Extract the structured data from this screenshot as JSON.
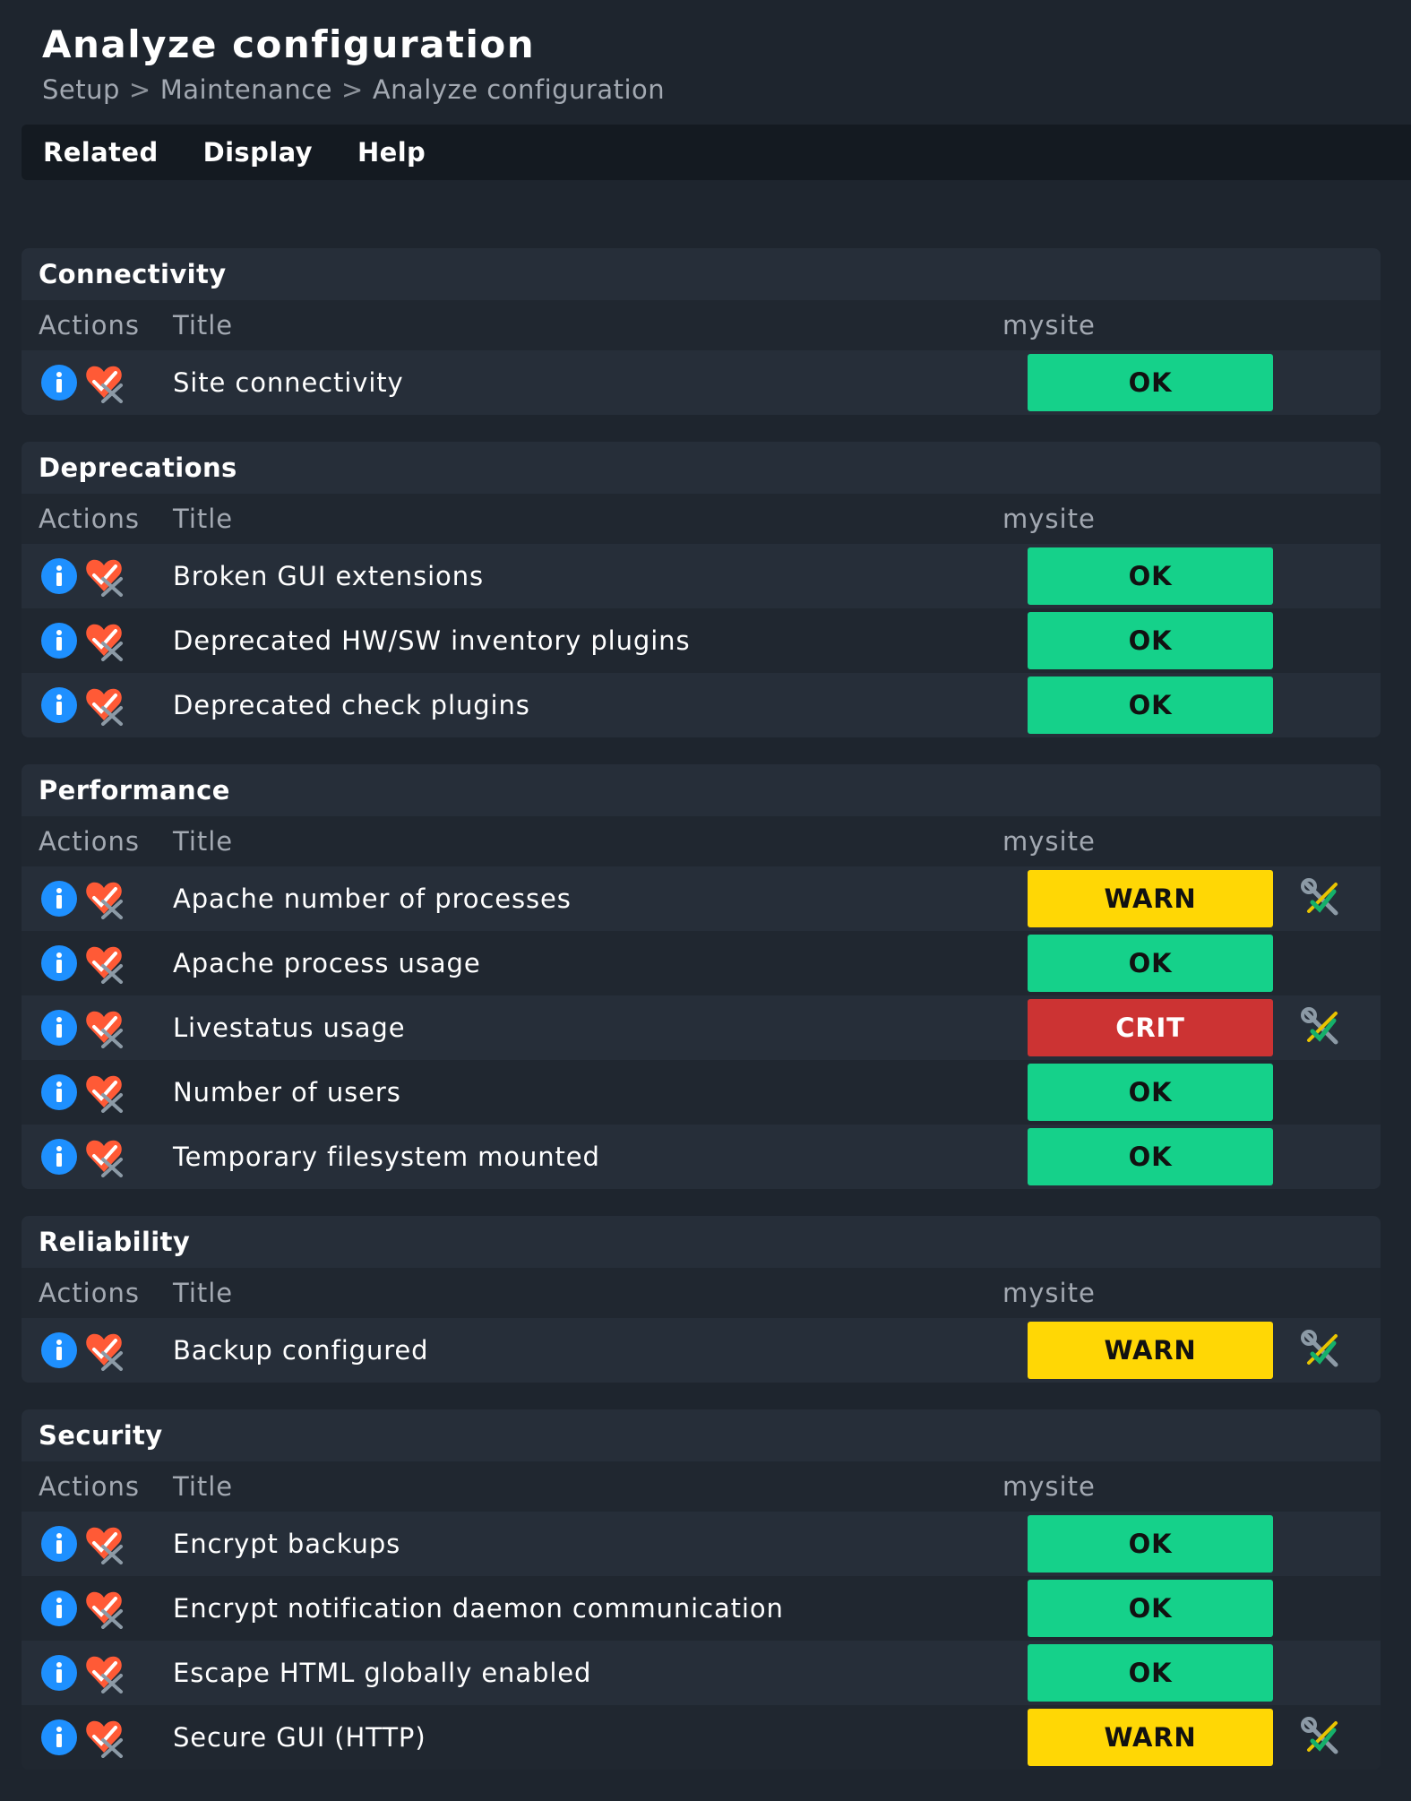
{
  "header": {
    "title": "Analyze configuration",
    "breadcrumb": [
      "Setup",
      "Maintenance",
      "Analyze configuration"
    ],
    "separator": ">"
  },
  "menu": [
    "Related",
    "Display",
    "Help"
  ],
  "columns": {
    "actions": "Actions",
    "title": "Title",
    "site": "mysite"
  },
  "colors": {
    "ok": "#15d18a",
    "warn": "#ffd705",
    "crit": "#cc3333",
    "info": "#1e90ff",
    "ack": "#ff5a36",
    "background": "#1e252e"
  },
  "icons": {
    "info": "info-icon",
    "acknowledge": "acknowledge-icon",
    "fix": "fix-wrench-icon"
  },
  "sections": [
    {
      "title": "Connectivity",
      "rows": [
        {
          "title": "Site connectivity",
          "status": "OK",
          "fix": false
        }
      ]
    },
    {
      "title": "Deprecations",
      "rows": [
        {
          "title": "Broken GUI extensions",
          "status": "OK",
          "fix": false
        },
        {
          "title": "Deprecated HW/SW inventory plugins",
          "status": "OK",
          "fix": false
        },
        {
          "title": "Deprecated check plugins",
          "status": "OK",
          "fix": false
        }
      ]
    },
    {
      "title": "Performance",
      "rows": [
        {
          "title": "Apache number of processes",
          "status": "WARN",
          "fix": true
        },
        {
          "title": "Apache process usage",
          "status": "OK",
          "fix": false
        },
        {
          "title": "Livestatus usage",
          "status": "CRIT",
          "fix": true
        },
        {
          "title": "Number of users",
          "status": "OK",
          "fix": false
        },
        {
          "title": "Temporary filesystem mounted",
          "status": "OK",
          "fix": false
        }
      ]
    },
    {
      "title": "Reliability",
      "rows": [
        {
          "title": "Backup configured",
          "status": "WARN",
          "fix": true
        }
      ]
    },
    {
      "title": "Security",
      "rows": [
        {
          "title": "Encrypt backups",
          "status": "OK",
          "fix": false
        },
        {
          "title": "Encrypt notification daemon communication",
          "status": "OK",
          "fix": false
        },
        {
          "title": "Escape HTML globally enabled",
          "status": "OK",
          "fix": false
        },
        {
          "title": "Secure GUI (HTTP)",
          "status": "WARN",
          "fix": true
        }
      ]
    }
  ]
}
